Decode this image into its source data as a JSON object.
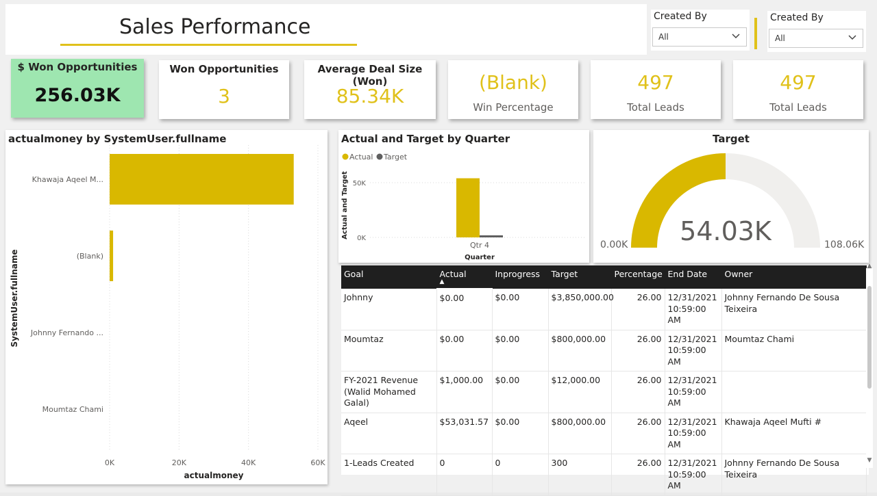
{
  "header": {
    "title": "Sales Performance"
  },
  "slicers": [
    {
      "label": "Created By",
      "value": "All"
    },
    {
      "label": "Created By",
      "value": "All"
    }
  ],
  "kpis": {
    "won_amount": {
      "label": "$ Won Opportunities",
      "value": "256.03K"
    },
    "won_count": {
      "label": "Won Opportunities",
      "value": "3"
    },
    "avg_deal": {
      "label": "Average Deal Size (Won)",
      "value": "85.34K"
    },
    "win_pct": {
      "value": "(Blank)",
      "label": "Win Percentage"
    },
    "leads1": {
      "value": "497",
      "label": "Total Leads"
    },
    "leads2": {
      "value": "497",
      "label": "Total Leads"
    }
  },
  "colors": {
    "accent": "#e0c11a",
    "bar": "#d9b800",
    "target": "#5f5f5f",
    "won_bg": "#9ee6b0",
    "gauge_bg": "#f0efed"
  },
  "chart_data": [
    {
      "type": "bar",
      "orientation": "horizontal",
      "title": "actualmoney by SystemUser.fullname",
      "categories": [
        "Khawaja Aqeel M...",
        "(Blank)",
        "Johnny Fernando ...",
        "Moumtaz Chami"
      ],
      "values": [
        53031.57,
        1000,
        0,
        0
      ],
      "xlabel": "actualmoney",
      "ylabel": "SystemUser.fullname",
      "xlim": [
        0,
        60000
      ],
      "xticks": [
        "0K",
        "20K",
        "40K",
        "60K"
      ]
    },
    {
      "type": "bar",
      "title": "Actual and Target by Quarter",
      "categories": [
        "Qtr 4"
      ],
      "series": [
        {
          "name": "Actual",
          "values": [
            54031.57
          ]
        },
        {
          "name": "Target",
          "values": [
            1500
          ]
        }
      ],
      "xlabel": "Quarter",
      "ylabel": "Actual and Target",
      "ylim": [
        0,
        60000
      ],
      "yticks": [
        "0K",
        "50K"
      ]
    },
    {
      "type": "gauge",
      "title": "Target",
      "value": 54031.57,
      "value_label": "54.03K",
      "min": 0,
      "min_label": "0.00K",
      "max": 108063.14,
      "max_label": "108.06K"
    }
  ],
  "table": {
    "columns": [
      "Goal",
      "Actual",
      "Inprogress",
      "Target",
      "Percentage",
      "End Date",
      "Owner"
    ],
    "rows": [
      [
        "Johnny",
        "$0.00",
        "$0.00",
        "$3,850,000.00",
        "26.00",
        "12/31/2021 10:59:00 AM",
        "Johnny Fernando De Sousa Teixeira"
      ],
      [
        "Moumtaz",
        "$0.00",
        "$0.00",
        "$800,000.00",
        "26.00",
        "12/31/2021 10:59:00 AM",
        "Moumtaz Chami"
      ],
      [
        "FY-2021 Revenue (Walid Mohamed Galal)",
        "$1,000.00",
        "$0.00",
        "$12,000.00",
        "26.00",
        "12/31/2021 10:59:00 AM",
        ""
      ],
      [
        "Aqeel",
        "$53,031.57",
        "$0.00",
        "$800,000.00",
        "26.00",
        "12/31/2021 10:59:00 AM",
        "Khawaja Aqeel Mufti #"
      ],
      [
        "1-Leads Created",
        "0",
        "0",
        "300",
        "26.00",
        "12/31/2021 10:59:00 AM",
        "Johnny Fernando De Sousa Teixeira"
      ]
    ]
  }
}
